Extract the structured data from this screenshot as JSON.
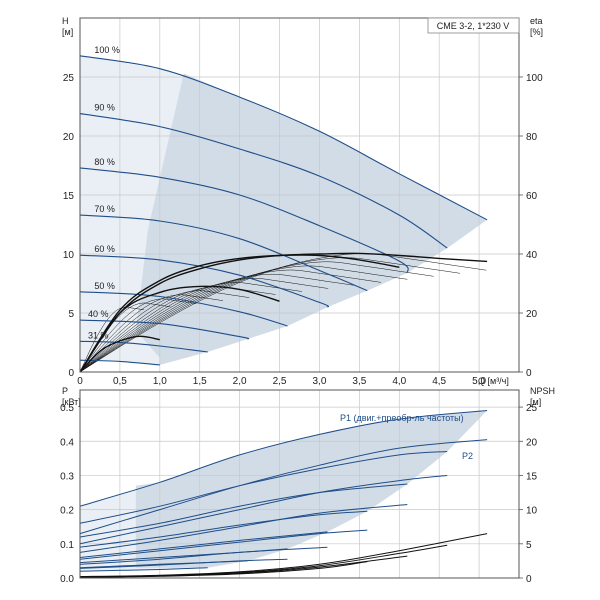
{
  "colors": {
    "grid": "#c8c8c8",
    "frame": "#555555",
    "zone_dark": "#d2dce6",
    "zone_light": "#e9eff5",
    "curve": "#1f4e8a",
    "eta_curve": "#111111",
    "npsh_curve": "#111111"
  },
  "chart_data": [
    {
      "type": "line",
      "title": "CME 3-2, 1*230 V",
      "xlabel": "Q [м³/ч]",
      "ylabel_left": "H\n[м]",
      "ylabel_right": "eta\n[%]",
      "xlim": [
        0,
        5.5
      ],
      "ylim_left": [
        0,
        30
      ],
      "ylim_right": [
        0,
        120
      ],
      "x_ticks": [
        "0",
        "0,5",
        "1,0",
        "1,5",
        "2,0",
        "2,5",
        "3,0",
        "3,5",
        "4,0",
        "4,5",
        "5,0"
      ],
      "y_ticks_left": [
        "0",
        "5",
        "10",
        "15",
        "20",
        "25"
      ],
      "y_ticks_right": [
        "0",
        "20",
        "40",
        "60",
        "80",
        "100"
      ],
      "grid": true,
      "head_curves": [
        {
          "name": "100 %",
          "x": [
            0,
            1,
            2,
            3,
            4,
            5.1
          ],
          "y": [
            26.8,
            25.7,
            23.3,
            20.4,
            16.8,
            12.9
          ]
        },
        {
          "name": "90 %",
          "x": [
            0,
            1,
            2,
            3,
            4,
            4.6
          ],
          "y": [
            21.9,
            20.8,
            18.9,
            16.6,
            13.3,
            10.5
          ]
        },
        {
          "name": "80 %",
          "x": [
            0,
            1,
            2,
            3,
            4,
            4.1
          ],
          "y": [
            17.3,
            16.5,
            15.0,
            12.4,
            9.4,
            8.4
          ]
        },
        {
          "name": "70 %",
          "x": [
            0,
            1,
            2,
            3,
            3.6
          ],
          "y": [
            13.3,
            12.8,
            11.3,
            8.6,
            6.9
          ]
        },
        {
          "name": "60 %",
          "x": [
            0,
            1,
            2,
            3,
            3.1
          ],
          "y": [
            9.9,
            9.5,
            8.2,
            5.9,
            5.5
          ]
        },
        {
          "name": "50 %",
          "x": [
            0,
            1,
            2,
            2.6
          ],
          "y": [
            6.8,
            6.4,
            5.1,
            3.9
          ]
        },
        {
          "name": "40 %",
          "x": [
            0,
            1,
            2,
            2.1
          ],
          "y": [
            4.4,
            4.1,
            3.0,
            2.8
          ]
        },
        {
          "name": "31 %",
          "x": [
            0,
            0.5,
            1,
            1.6
          ],
          "y": [
            2.6,
            2.5,
            2.2,
            1.7
          ]
        },
        {
          "name": "",
          "x": [
            0,
            0.5,
            1.0
          ],
          "y": [
            1.0,
            0.9,
            0.6
          ]
        }
      ],
      "efficiency_curves": [
        {
          "x": [
            0,
            0.5,
            1.0,
            1.5,
            2.0,
            2.5,
            3.0,
            3.5,
            4.0,
            4.5,
            5.1
          ],
          "y": [
            0,
            20,
            30,
            35,
            38,
            39.5,
            40,
            40.2,
            39.5,
            38.5,
            37.5
          ]
        },
        {
          "x": [
            0,
            0.5,
            1.0,
            1.5,
            2.0,
            2.5,
            3.0,
            3.5,
            4.0
          ],
          "y": [
            0,
            21,
            31,
            36,
            38.5,
            39.5,
            39.5,
            38,
            35.5
          ]
        },
        {
          "x": [
            0,
            0.5,
            1.0,
            1.5,
            2.0,
            2.5
          ],
          "y": [
            0,
            20,
            27,
            29,
            28,
            24
          ]
        },
        {
          "x": [
            0,
            0.3,
            0.7,
            1.0
          ],
          "y": [
            0,
            8,
            12,
            11
          ]
        }
      ]
    },
    {
      "type": "line",
      "xlim": [
        0,
        5.5
      ],
      "ylim_left": [
        0,
        0.55
      ],
      "ylim_right": [
        0,
        27.5
      ],
      "ylabel_left": "P\n[кВт]",
      "ylabel_right": "NPSH\n[м]",
      "y_ticks_left": [
        "0.0",
        "0.1",
        "0.2",
        "0.3",
        "0.4",
        "0.5"
      ],
      "y_ticks_right": [
        "0",
        "5",
        "10",
        "15",
        "20",
        "25"
      ],
      "grid": true,
      "series_labels": [
        "P1 (двиг.+преобр-ль частоты)",
        "P2"
      ],
      "power_p1_curves": [
        {
          "x": [
            0,
            1,
            2,
            3,
            4,
            5.1
          ],
          "y": [
            0.21,
            0.28,
            0.36,
            0.42,
            0.465,
            0.49
          ]
        },
        {
          "x": [
            0,
            1,
            2,
            3,
            4,
            4.6
          ],
          "y": [
            0.16,
            0.21,
            0.27,
            0.32,
            0.36,
            0.37
          ]
        },
        {
          "x": [
            0,
            1,
            2,
            3,
            4.1
          ],
          "y": [
            0.12,
            0.16,
            0.21,
            0.25,
            0.275
          ]
        },
        {
          "x": [
            0,
            1,
            2,
            3,
            3.6
          ],
          "y": [
            0.09,
            0.12,
            0.155,
            0.185,
            0.195
          ]
        },
        {
          "x": [
            0,
            1,
            2,
            3.1
          ],
          "y": [
            0.06,
            0.085,
            0.11,
            0.135
          ]
        },
        {
          "x": [
            0,
            1,
            2,
            2.6
          ],
          "y": [
            0.045,
            0.06,
            0.075,
            0.085
          ]
        },
        {
          "x": [
            0,
            1,
            2.1
          ],
          "y": [
            0.03,
            0.04,
            0.05
          ]
        },
        {
          "x": [
            0,
            1,
            1.6
          ],
          "y": [
            0.02,
            0.025,
            0.03
          ]
        }
      ],
      "power_p2_curves": [
        {
          "x": [
            0,
            1,
            2,
            3,
            4,
            5.1
          ],
          "y": [
            0.13,
            0.2,
            0.27,
            0.33,
            0.38,
            0.405
          ]
        },
        {
          "x": [
            0,
            1,
            2,
            3,
            4,
            4.6
          ],
          "y": [
            0.1,
            0.15,
            0.2,
            0.25,
            0.285,
            0.3
          ]
        },
        {
          "x": [
            0,
            1,
            2,
            3,
            4.1
          ],
          "y": [
            0.075,
            0.11,
            0.15,
            0.19,
            0.215
          ]
        },
        {
          "x": [
            0,
            1,
            2,
            3,
            3.6
          ],
          "y": [
            0.055,
            0.08,
            0.105,
            0.13,
            0.14
          ]
        },
        {
          "x": [
            0,
            1,
            2,
            3.1
          ],
          "y": [
            0.04,
            0.055,
            0.075,
            0.09
          ]
        },
        {
          "x": [
            0,
            1,
            2,
            2.6
          ],
          "y": [
            0.028,
            0.038,
            0.05,
            0.055
          ]
        }
      ],
      "npsh_curves": [
        {
          "x": [
            0,
            1,
            2,
            3,
            4,
            5.1
          ],
          "y": [
            0.2,
            0.4,
            0.9,
            2.0,
            4.0,
            6.5
          ]
        },
        {
          "x": [
            0,
            1,
            2,
            3,
            4,
            4.6
          ],
          "y": [
            0.2,
            0.35,
            0.8,
            1.8,
            3.6,
            4.8
          ]
        },
        {
          "x": [
            0,
            1,
            2,
            3,
            4.1
          ],
          "y": [
            0.15,
            0.3,
            0.7,
            1.6,
            3.2
          ]
        },
        {
          "x": [
            0,
            1,
            2,
            3,
            3.6
          ],
          "y": [
            0.1,
            0.25,
            0.6,
            1.4,
            2.4
          ]
        }
      ]
    }
  ]
}
